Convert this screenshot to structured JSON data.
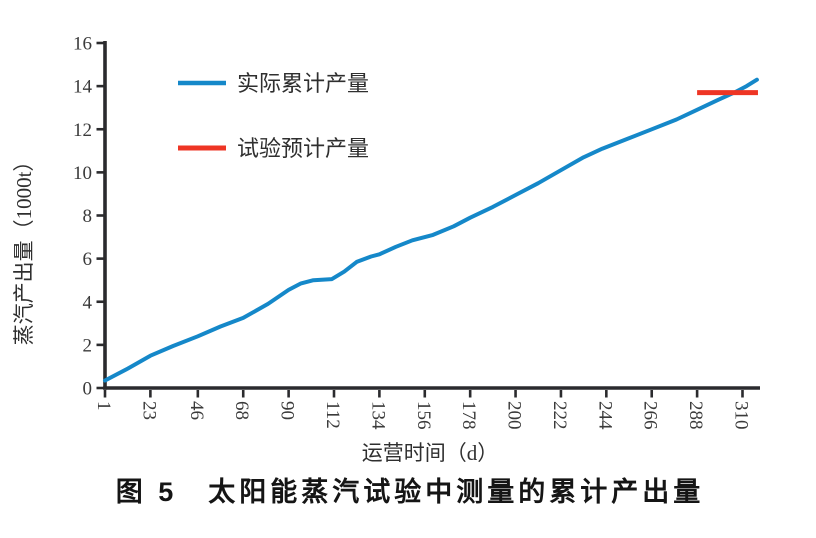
{
  "figure": {
    "caption": "图 5　太阳能蒸汽试验中测量的累计产出量"
  },
  "colors": {
    "actual_line": "#1588c9",
    "expected_line": "#ee3524",
    "axis": "#2b2b2e",
    "tick_text": "#3a3a3a",
    "caption_text": "#151515"
  },
  "chart_data": {
    "type": "line",
    "title": "",
    "xlabel": "运营时间（d）",
    "ylabel": "蒸汽产出量（1000t）",
    "xlim": [
      1,
      318
    ],
    "ylim": [
      0,
      16
    ],
    "grid": false,
    "legend_position": "upper-left-inside",
    "x_ticks": [
      1,
      23,
      46,
      68,
      90,
      112,
      134,
      156,
      178,
      200,
      222,
      244,
      266,
      288,
      310
    ],
    "y_ticks": [
      0,
      2,
      4,
      6,
      8,
      10,
      12,
      14,
      16
    ],
    "series": [
      {
        "name": "实际累计产量",
        "color": "#1588c9",
        "points": [
          [
            1,
            0.35
          ],
          [
            12,
            0.9
          ],
          [
            23,
            1.5
          ],
          [
            34,
            1.95
          ],
          [
            46,
            2.4
          ],
          [
            57,
            2.85
          ],
          [
            68,
            3.25
          ],
          [
            80,
            3.9
          ],
          [
            90,
            4.55
          ],
          [
            96,
            4.85
          ],
          [
            102,
            5.0
          ],
          [
            111,
            5.05
          ],
          [
            117,
            5.4
          ],
          [
            123,
            5.85
          ],
          [
            130,
            6.1
          ],
          [
            134,
            6.2
          ],
          [
            142,
            6.55
          ],
          [
            150,
            6.85
          ],
          [
            160,
            7.1
          ],
          [
            170,
            7.5
          ],
          [
            178,
            7.9
          ],
          [
            189,
            8.4
          ],
          [
            200,
            8.95
          ],
          [
            211,
            9.5
          ],
          [
            222,
            10.1
          ],
          [
            233,
            10.7
          ],
          [
            242,
            11.1
          ],
          [
            254,
            11.55
          ],
          [
            266,
            12.0
          ],
          [
            278,
            12.45
          ],
          [
            288,
            12.9
          ],
          [
            298,
            13.35
          ],
          [
            306,
            13.7
          ],
          [
            312,
            14.0
          ],
          [
            317,
            14.3
          ]
        ]
      },
      {
        "name": "试验预计产量",
        "color": "#ee3524",
        "points": [
          [
            288,
            13.7
          ],
          [
            317.5,
            13.7
          ]
        ]
      }
    ]
  }
}
